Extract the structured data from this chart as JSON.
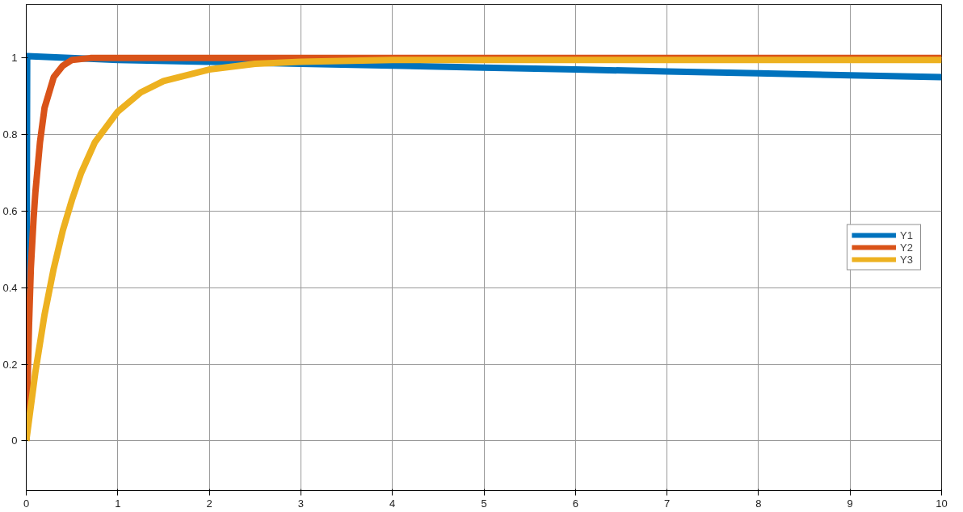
{
  "chart_data": {
    "type": "line",
    "xlim": [
      0,
      10
    ],
    "ylim": [
      -0.13,
      1.14
    ],
    "xticks": [
      0,
      1,
      2,
      3,
      4,
      5,
      6,
      7,
      8,
      9,
      10
    ],
    "yticks": [
      0,
      0.2,
      0.4,
      0.6,
      0.8,
      1
    ],
    "grid": true,
    "legend": "right",
    "marker": "none",
    "line_style": "solid",
    "series": [
      {
        "name": "Y1",
        "color": "#0072bd",
        "x": [
          0,
          0.01,
          1,
          2,
          3,
          4,
          5,
          6,
          7,
          8,
          9,
          10
        ],
        "values": [
          0,
          1.005,
          0.995,
          0.99,
          0.985,
          0.98,
          0.975,
          0.97,
          0.965,
          0.96,
          0.955,
          0.95
        ]
      },
      {
        "name": "Y2",
        "color": "#d95319",
        "x": [
          0,
          0.03,
          0.05,
          0.08,
          0.1,
          0.15,
          0.2,
          0.3,
          0.4,
          0.5,
          0.7,
          1,
          10
        ],
        "values": [
          0,
          0.3,
          0.45,
          0.58,
          0.65,
          0.78,
          0.87,
          0.95,
          0.98,
          0.995,
          1.0,
          1.0,
          1.0
        ]
      },
      {
        "name": "Y3",
        "color": "#edb120",
        "x": [
          0,
          0.1,
          0.2,
          0.3,
          0.4,
          0.5,
          0.6,
          0.75,
          1,
          1.25,
          1.5,
          2,
          2.5,
          3,
          4,
          10
        ],
        "values": [
          0,
          0.18,
          0.33,
          0.45,
          0.55,
          0.63,
          0.7,
          0.78,
          0.86,
          0.91,
          0.94,
          0.97,
          0.985,
          0.99,
          0.995,
          0.995
        ]
      }
    ]
  }
}
